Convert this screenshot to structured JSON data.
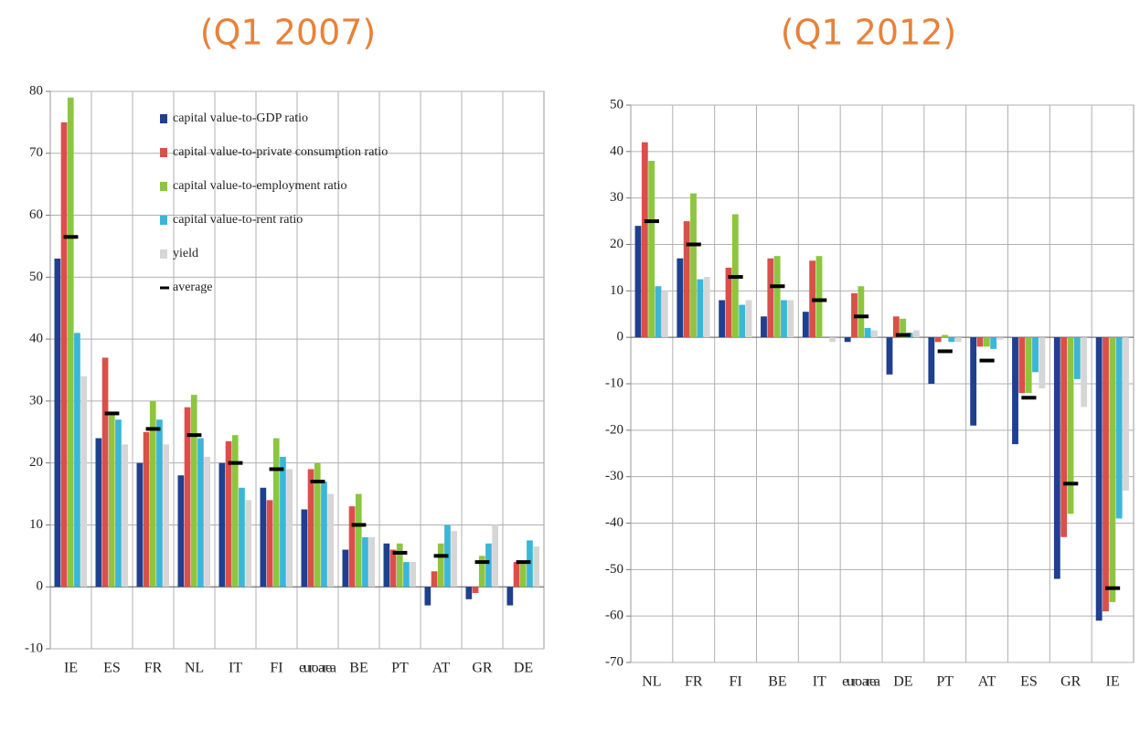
{
  "chart_data": [
    {
      "type": "bar",
      "title": "(Q1 2007)",
      "categories": [
        "IE",
        "ES",
        "FR",
        "NL",
        "IT",
        "FI",
        "euro area",
        "BE",
        "PT",
        "AT",
        "GR",
        "DE"
      ],
      "ylim": [
        -10,
        80
      ],
      "yticks": [
        -10,
        0,
        10,
        20,
        30,
        40,
        50,
        60,
        70,
        80
      ],
      "grid": true,
      "legend": "top-right",
      "series": [
        {
          "name": "capital value-to-GDP ratio",
          "color": "#1f3f8f",
          "values": [
            53,
            24,
            20,
            18,
            20,
            16,
            12.5,
            6,
            7,
            -3,
            -2,
            -3
          ]
        },
        {
          "name": "capital value-to-private consumption ratio",
          "color": "#d9504a",
          "values": [
            75,
            37,
            25,
            29,
            23.5,
            14,
            19,
            13,
            6,
            2.5,
            -1,
            4
          ]
        },
        {
          "name": "capital value-to-employment ratio",
          "color": "#8cc63f",
          "values": [
            79,
            28,
            30,
            31,
            24.5,
            24,
            20,
            15,
            7,
            7,
            5,
            4
          ]
        },
        {
          "name": "capital value-to-rent ratio",
          "color": "#3bb6d8",
          "values": [
            41,
            27,
            27,
            24,
            16,
            21,
            17,
            8,
            4,
            10,
            7,
            7.5
          ]
        },
        {
          "name": "yield",
          "color": "#d6d6d6",
          "values": [
            34,
            23,
            23,
            21,
            14,
            19,
            15,
            8,
            4,
            9,
            10,
            6.5
          ]
        },
        {
          "name": "average",
          "color": "#000000",
          "style": "dash",
          "values": [
            56.5,
            28,
            25.5,
            24.5,
            20,
            19,
            17,
            10,
            5.5,
            5,
            4,
            4
          ]
        }
      ]
    },
    {
      "type": "bar",
      "title": "(Q1 2012)",
      "categories": [
        "NL",
        "FR",
        "FI",
        "BE",
        "IT",
        "euro area",
        "DE",
        "PT",
        "AT",
        "ES",
        "GR",
        "IE"
      ],
      "ylim": [
        -70,
        50
      ],
      "yticks": [
        -70,
        -60,
        -50,
        -40,
        -30,
        -20,
        -10,
        0,
        10,
        20,
        30,
        40,
        50
      ],
      "grid": true,
      "series": [
        {
          "color": "#1f3f8f",
          "values": [
            24,
            17,
            8,
            4.5,
            5.5,
            -1,
            -8,
            -10,
            -19,
            -23,
            -52,
            -61
          ]
        },
        {
          "color": "#d9504a",
          "values": [
            42,
            25,
            15,
            17,
            16.5,
            9.5,
            4.5,
            -1,
            -2,
            -12,
            -43,
            -59
          ]
        },
        {
          "color": "#8cc63f",
          "values": [
            38,
            31,
            26.5,
            17.5,
            17.5,
            11,
            4,
            0.5,
            -2,
            -12,
            -38,
            -57
          ]
        },
        {
          "color": "#3bb6d8",
          "values": [
            11,
            12.5,
            7,
            8,
            0,
            2,
            1,
            -1,
            -2.5,
            -7.5,
            -9,
            -39
          ]
        },
        {
          "color": "#d6d6d6",
          "values": [
            10,
            13,
            8,
            8,
            -1,
            1.5,
            1.5,
            -1,
            -0.5,
            -11,
            -15,
            -33
          ]
        },
        {
          "color": "#000000",
          "style": "dash",
          "values": [
            25,
            20,
            13,
            11,
            8,
            4.5,
            0.5,
            -3,
            -5,
            -13,
            -31.5,
            -54
          ]
        }
      ]
    }
  ]
}
